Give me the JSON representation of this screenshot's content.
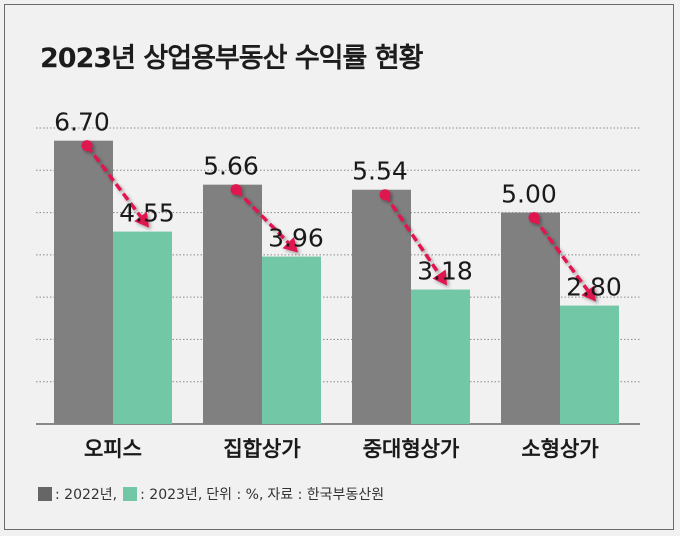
{
  "colors": {
    "series_2022": "#808080",
    "series_2023": "#72c8a6",
    "arrow": "#e0134f",
    "grid": "#8a8a8a",
    "baseline": "#666666"
  },
  "legend": {
    "item_2022": ": 2022년,",
    "item_2023": ": 2023년,",
    "unit": "단위 : %,",
    "source": "자료 : 한국부동산원"
  },
  "chart_data": {
    "type": "bar",
    "title": "2023년 상업용부동산 수익률 현황",
    "categories": [
      "오피스",
      "집합상가",
      "중대형상가",
      "소형상가"
    ],
    "series": [
      {
        "name": "2022년",
        "values": [
          6.7,
          5.66,
          5.54,
          5.0
        ],
        "labels": [
          "6.70",
          "5.66",
          "5.54",
          "5.00"
        ]
      },
      {
        "name": "2023년",
        "values": [
          4.55,
          3.96,
          3.18,
          2.8
        ],
        "labels": [
          "4.55",
          "3.96",
          "3.18",
          "2.80"
        ]
      }
    ],
    "ylim": [
      0,
      7
    ],
    "grid": true,
    "annotations": "downward arrow from each 2022 bar top to the 2023 bar top",
    "legend_position": "bottom-left"
  }
}
